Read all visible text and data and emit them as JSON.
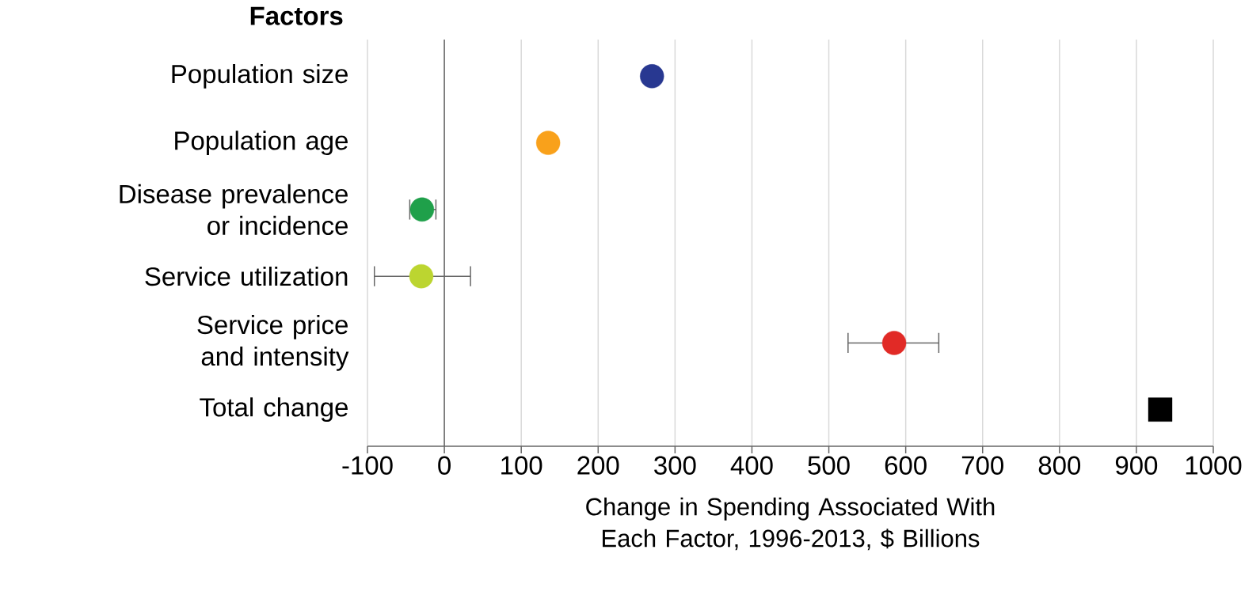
{
  "chart_data": {
    "type": "scatter",
    "orientation": "horizontal",
    "ylabel": "Factors",
    "xlabel": "Change in Spending Associated With Each Factor, 1996-2013, $ Billions",
    "categories": [
      "Population size",
      "Population age",
      "Disease prevalence or incidence",
      "Service utilization",
      "Service price and intensity",
      "Total change"
    ],
    "xlim": [
      -100,
      1000
    ],
    "xticks": [
      -100,
      0,
      100,
      200,
      300,
      400,
      500,
      600,
      700,
      800,
      900,
      1000
    ],
    "grid": "x",
    "ref_lines": [
      {
        "axis": "x",
        "value": 0
      }
    ],
    "series": [
      {
        "marker": "circle",
        "values": [
          270,
          135,
          -29,
          -30,
          585,
          null
        ],
        "colors": [
          "#283891",
          "#f9a11b",
          "#1fa04a",
          "#bcd530",
          "#e12a26",
          null
        ],
        "errors": [
          null,
          null,
          [
            -45,
            -11
          ],
          [
            -91,
            34
          ],
          [
            525,
            643
          ],
          null
        ]
      },
      {
        "marker": "square",
        "color": "#000000",
        "values": [
          null,
          null,
          null,
          null,
          null,
          931
        ],
        "errors": [
          null,
          null,
          null,
          null,
          null,
          null
        ]
      }
    ]
  }
}
